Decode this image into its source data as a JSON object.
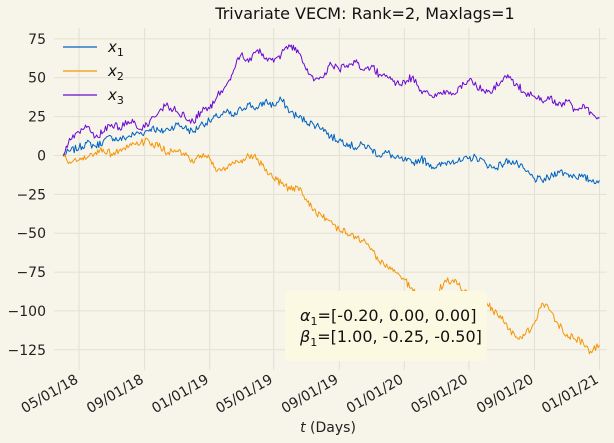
{
  "chart_data": {
    "type": "line",
    "title": "Trivariate VECM: Rank=2, Maxlags=1",
    "xlabel": "t (Days)",
    "ylabel": "",
    "x_range": [
      "2018-03-15",
      "2021-01-15"
    ],
    "ylim": [
      -138,
      82
    ],
    "grid": true,
    "legend_position": "top-left",
    "x_ticks": [
      "2018-05-01",
      "2018-09-01",
      "2019-01-01",
      "2019-05-01",
      "2019-09-01",
      "2020-01-01",
      "2020-05-01",
      "2020-09-01",
      "2021-01-01"
    ],
    "x_tick_labels": [
      "05/01/18",
      "09/01/18",
      "01/01/19",
      "05/01/19",
      "09/01/19",
      "01/01/20",
      "05/01/20",
      "09/01/20",
      "01/01/21"
    ],
    "y_ticks": [
      75,
      50,
      25,
      0,
      -25,
      -50,
      -75,
      -100,
      -125
    ],
    "y_tick_labels": [
      "75",
      "50",
      "25",
      "0",
      "−25",
      "−50",
      "−75",
      "−100",
      "−125"
    ],
    "series": [
      {
        "name": "x1",
        "color": "#0063c2",
        "points": [
          [
            "2018-04-01",
            0
          ],
          [
            "2018-04-15",
            3
          ],
          [
            "2018-05-01",
            5
          ],
          [
            "2018-05-15",
            8
          ],
          [
            "2018-06-01",
            6
          ],
          [
            "2018-06-15",
            9
          ],
          [
            "2018-07-01",
            12
          ],
          [
            "2018-07-15",
            10
          ],
          [
            "2018-08-01",
            12
          ],
          [
            "2018-08-15",
            14
          ],
          [
            "2018-09-01",
            15
          ],
          [
            "2018-09-15",
            18
          ],
          [
            "2018-10-01",
            15
          ],
          [
            "2018-10-15",
            17
          ],
          [
            "2018-11-01",
            20
          ],
          [
            "2018-11-15",
            18
          ],
          [
            "2018-12-01",
            15
          ],
          [
            "2018-12-15",
            20
          ],
          [
            "2019-01-01",
            22
          ],
          [
            "2019-01-15",
            25
          ],
          [
            "2019-02-01",
            28
          ],
          [
            "2019-02-15",
            25
          ],
          [
            "2019-03-01",
            30
          ],
          [
            "2019-03-15",
            33
          ],
          [
            "2019-04-01",
            30
          ],
          [
            "2019-04-15",
            35
          ],
          [
            "2019-05-01",
            32
          ],
          [
            "2019-05-15",
            36
          ],
          [
            "2019-06-01",
            28
          ],
          [
            "2019-06-15",
            25
          ],
          [
            "2019-07-01",
            22
          ],
          [
            "2019-07-15",
            20
          ],
          [
            "2019-08-01",
            18
          ],
          [
            "2019-08-15",
            12
          ],
          [
            "2019-09-01",
            10
          ],
          [
            "2019-09-15",
            8
          ],
          [
            "2019-10-01",
            5
          ],
          [
            "2019-10-15",
            7
          ],
          [
            "2019-11-01",
            4
          ],
          [
            "2019-11-15",
            0
          ],
          [
            "2019-12-01",
            2
          ],
          [
            "2019-12-15",
            -2
          ],
          [
            "2020-01-01",
            -3
          ],
          [
            "2020-01-15",
            -5
          ],
          [
            "2020-02-01",
            -2
          ],
          [
            "2020-02-15",
            -5
          ],
          [
            "2020-03-01",
            -8
          ],
          [
            "2020-03-15",
            -5
          ],
          [
            "2020-04-01",
            -3
          ],
          [
            "2020-04-15",
            -4
          ],
          [
            "2020-05-01",
            -2
          ],
          [
            "2020-05-15",
            -1
          ],
          [
            "2020-06-01",
            -5
          ],
          [
            "2020-06-15",
            -8
          ],
          [
            "2020-07-01",
            -6
          ],
          [
            "2020-07-15",
            -3
          ],
          [
            "2020-08-01",
            -6
          ],
          [
            "2020-08-15",
            -10
          ],
          [
            "2020-09-01",
            -15
          ],
          [
            "2020-09-15",
            -16
          ],
          [
            "2020-10-01",
            -14
          ],
          [
            "2020-10-15",
            -10
          ],
          [
            "2020-11-01",
            -12
          ],
          [
            "2020-11-15",
            -13
          ],
          [
            "2020-12-01",
            -14
          ],
          [
            "2020-12-15",
            -16
          ],
          [
            "2021-01-01",
            -16
          ]
        ]
      },
      {
        "name": "x2",
        "color": "#f5960a",
        "points": [
          [
            "2018-04-01",
            0
          ],
          [
            "2018-04-15",
            -5
          ],
          [
            "2018-05-01",
            -3
          ],
          [
            "2018-05-15",
            -2
          ],
          [
            "2018-06-01",
            2
          ],
          [
            "2018-06-15",
            4
          ],
          [
            "2018-07-01",
            1
          ],
          [
            "2018-07-15",
            3
          ],
          [
            "2018-08-01",
            5
          ],
          [
            "2018-08-15",
            7
          ],
          [
            "2018-09-01",
            9
          ],
          [
            "2018-09-15",
            8
          ],
          [
            "2018-10-01",
            5
          ],
          [
            "2018-10-15",
            2
          ],
          [
            "2018-11-01",
            3
          ],
          [
            "2018-11-15",
            0
          ],
          [
            "2018-12-01",
            -5
          ],
          [
            "2018-12-15",
            0
          ],
          [
            "2019-01-01",
            -2
          ],
          [
            "2019-01-15",
            -10
          ],
          [
            "2019-02-01",
            -8
          ],
          [
            "2019-02-15",
            -5
          ],
          [
            "2019-03-01",
            -3
          ],
          [
            "2019-03-15",
            0
          ],
          [
            "2019-04-01",
            -2
          ],
          [
            "2019-04-15",
            -10
          ],
          [
            "2019-05-01",
            -15
          ],
          [
            "2019-05-15",
            -18
          ],
          [
            "2019-06-01",
            -22
          ],
          [
            "2019-06-15",
            -20
          ],
          [
            "2019-07-01",
            -28
          ],
          [
            "2019-07-15",
            -35
          ],
          [
            "2019-08-01",
            -40
          ],
          [
            "2019-08-15",
            -42
          ],
          [
            "2019-09-01",
            -48
          ],
          [
            "2019-09-15",
            -50
          ],
          [
            "2019-10-01",
            -52
          ],
          [
            "2019-10-15",
            -55
          ],
          [
            "2019-11-01",
            -60
          ],
          [
            "2019-11-15",
            -68
          ],
          [
            "2019-12-01",
            -72
          ],
          [
            "2019-12-15",
            -75
          ],
          [
            "2020-01-01",
            -80
          ],
          [
            "2020-01-15",
            -85
          ],
          [
            "2020-02-01",
            -95
          ],
          [
            "2020-02-15",
            -100
          ],
          [
            "2020-03-01",
            -90
          ],
          [
            "2020-03-15",
            -82
          ],
          [
            "2020-04-01",
            -80
          ],
          [
            "2020-04-15",
            -85
          ],
          [
            "2020-05-01",
            -88
          ],
          [
            "2020-05-15",
            -95
          ],
          [
            "2020-06-01",
            -92
          ],
          [
            "2020-06-15",
            -100
          ],
          [
            "2020-07-01",
            -105
          ],
          [
            "2020-07-15",
            -112
          ],
          [
            "2020-08-01",
            -118
          ],
          [
            "2020-08-15",
            -115
          ],
          [
            "2020-09-01",
            -108
          ],
          [
            "2020-09-15",
            -95
          ],
          [
            "2020-10-01",
            -100
          ],
          [
            "2020-10-15",
            -108
          ],
          [
            "2020-11-01",
            -115
          ],
          [
            "2020-11-15",
            -118
          ],
          [
            "2020-12-01",
            -120
          ],
          [
            "2020-12-15",
            -126
          ],
          [
            "2021-01-01",
            -122
          ]
        ]
      },
      {
        "name": "x3",
        "color": "#6a0ad4",
        "points": [
          [
            "2018-04-01",
            0
          ],
          [
            "2018-04-15",
            10
          ],
          [
            "2018-05-01",
            15
          ],
          [
            "2018-05-15",
            18
          ],
          [
            "2018-06-01",
            12
          ],
          [
            "2018-06-15",
            15
          ],
          [
            "2018-07-01",
            20
          ],
          [
            "2018-07-15",
            18
          ],
          [
            "2018-08-01",
            22
          ],
          [
            "2018-08-15",
            20
          ],
          [
            "2018-09-01",
            18
          ],
          [
            "2018-09-15",
            25
          ],
          [
            "2018-10-01",
            30
          ],
          [
            "2018-10-15",
            32
          ],
          [
            "2018-11-01",
            28
          ],
          [
            "2018-11-15",
            25
          ],
          [
            "2018-12-01",
            22
          ],
          [
            "2018-12-15",
            28
          ],
          [
            "2019-01-01",
            30
          ],
          [
            "2019-01-15",
            38
          ],
          [
            "2019-02-01",
            45
          ],
          [
            "2019-02-15",
            55
          ],
          [
            "2019-03-01",
            65
          ],
          [
            "2019-03-15",
            60
          ],
          [
            "2019-04-01",
            68
          ],
          [
            "2019-04-15",
            62
          ],
          [
            "2019-05-01",
            60
          ],
          [
            "2019-05-15",
            65
          ],
          [
            "2019-06-01",
            70
          ],
          [
            "2019-06-15",
            68
          ],
          [
            "2019-07-01",
            55
          ],
          [
            "2019-07-15",
            48
          ],
          [
            "2019-08-01",
            50
          ],
          [
            "2019-08-15",
            60
          ],
          [
            "2019-09-01",
            55
          ],
          [
            "2019-09-15",
            58
          ],
          [
            "2019-10-01",
            60
          ],
          [
            "2019-10-15",
            55
          ],
          [
            "2019-11-01",
            58
          ],
          [
            "2019-11-15",
            52
          ],
          [
            "2019-12-01",
            50
          ],
          [
            "2019-12-15",
            45
          ],
          [
            "2020-01-01",
            48
          ],
          [
            "2020-01-15",
            50
          ],
          [
            "2020-02-01",
            42
          ],
          [
            "2020-02-15",
            40
          ],
          [
            "2020-03-01",
            38
          ],
          [
            "2020-03-15",
            42
          ],
          [
            "2020-04-01",
            40
          ],
          [
            "2020-04-15",
            45
          ],
          [
            "2020-05-01",
            48
          ],
          [
            "2020-05-15",
            45
          ],
          [
            "2020-06-01",
            40
          ],
          [
            "2020-06-15",
            42
          ],
          [
            "2020-07-01",
            48
          ],
          [
            "2020-07-15",
            50
          ],
          [
            "2020-08-01",
            45
          ],
          [
            "2020-08-15",
            40
          ],
          [
            "2020-09-01",
            38
          ],
          [
            "2020-09-15",
            35
          ],
          [
            "2020-10-01",
            38
          ],
          [
            "2020-10-15",
            32
          ],
          [
            "2020-11-01",
            35
          ],
          [
            "2020-11-15",
            30
          ],
          [
            "2020-12-01",
            33
          ],
          [
            "2020-12-15",
            28
          ],
          [
            "2021-01-01",
            24
          ]
        ]
      }
    ],
    "annotation": {
      "line1_greek": "α",
      "line1_text": "=[-0.20, 0.00, 0.00]",
      "line2_greek": "β",
      "line2_text": "=[1.00, -0.25, -0.50]",
      "subscript": "1"
    }
  },
  "legend": {
    "items": [
      {
        "symbol": "x",
        "sub": "1",
        "color": "#0063c2"
      },
      {
        "symbol": "x",
        "sub": "2",
        "color": "#f5960a"
      },
      {
        "symbol": "x",
        "sub": "3",
        "color": "#6a0ad4"
      }
    ]
  },
  "axis_label": {
    "x_var": "t",
    "x_rest": " (Days)"
  }
}
